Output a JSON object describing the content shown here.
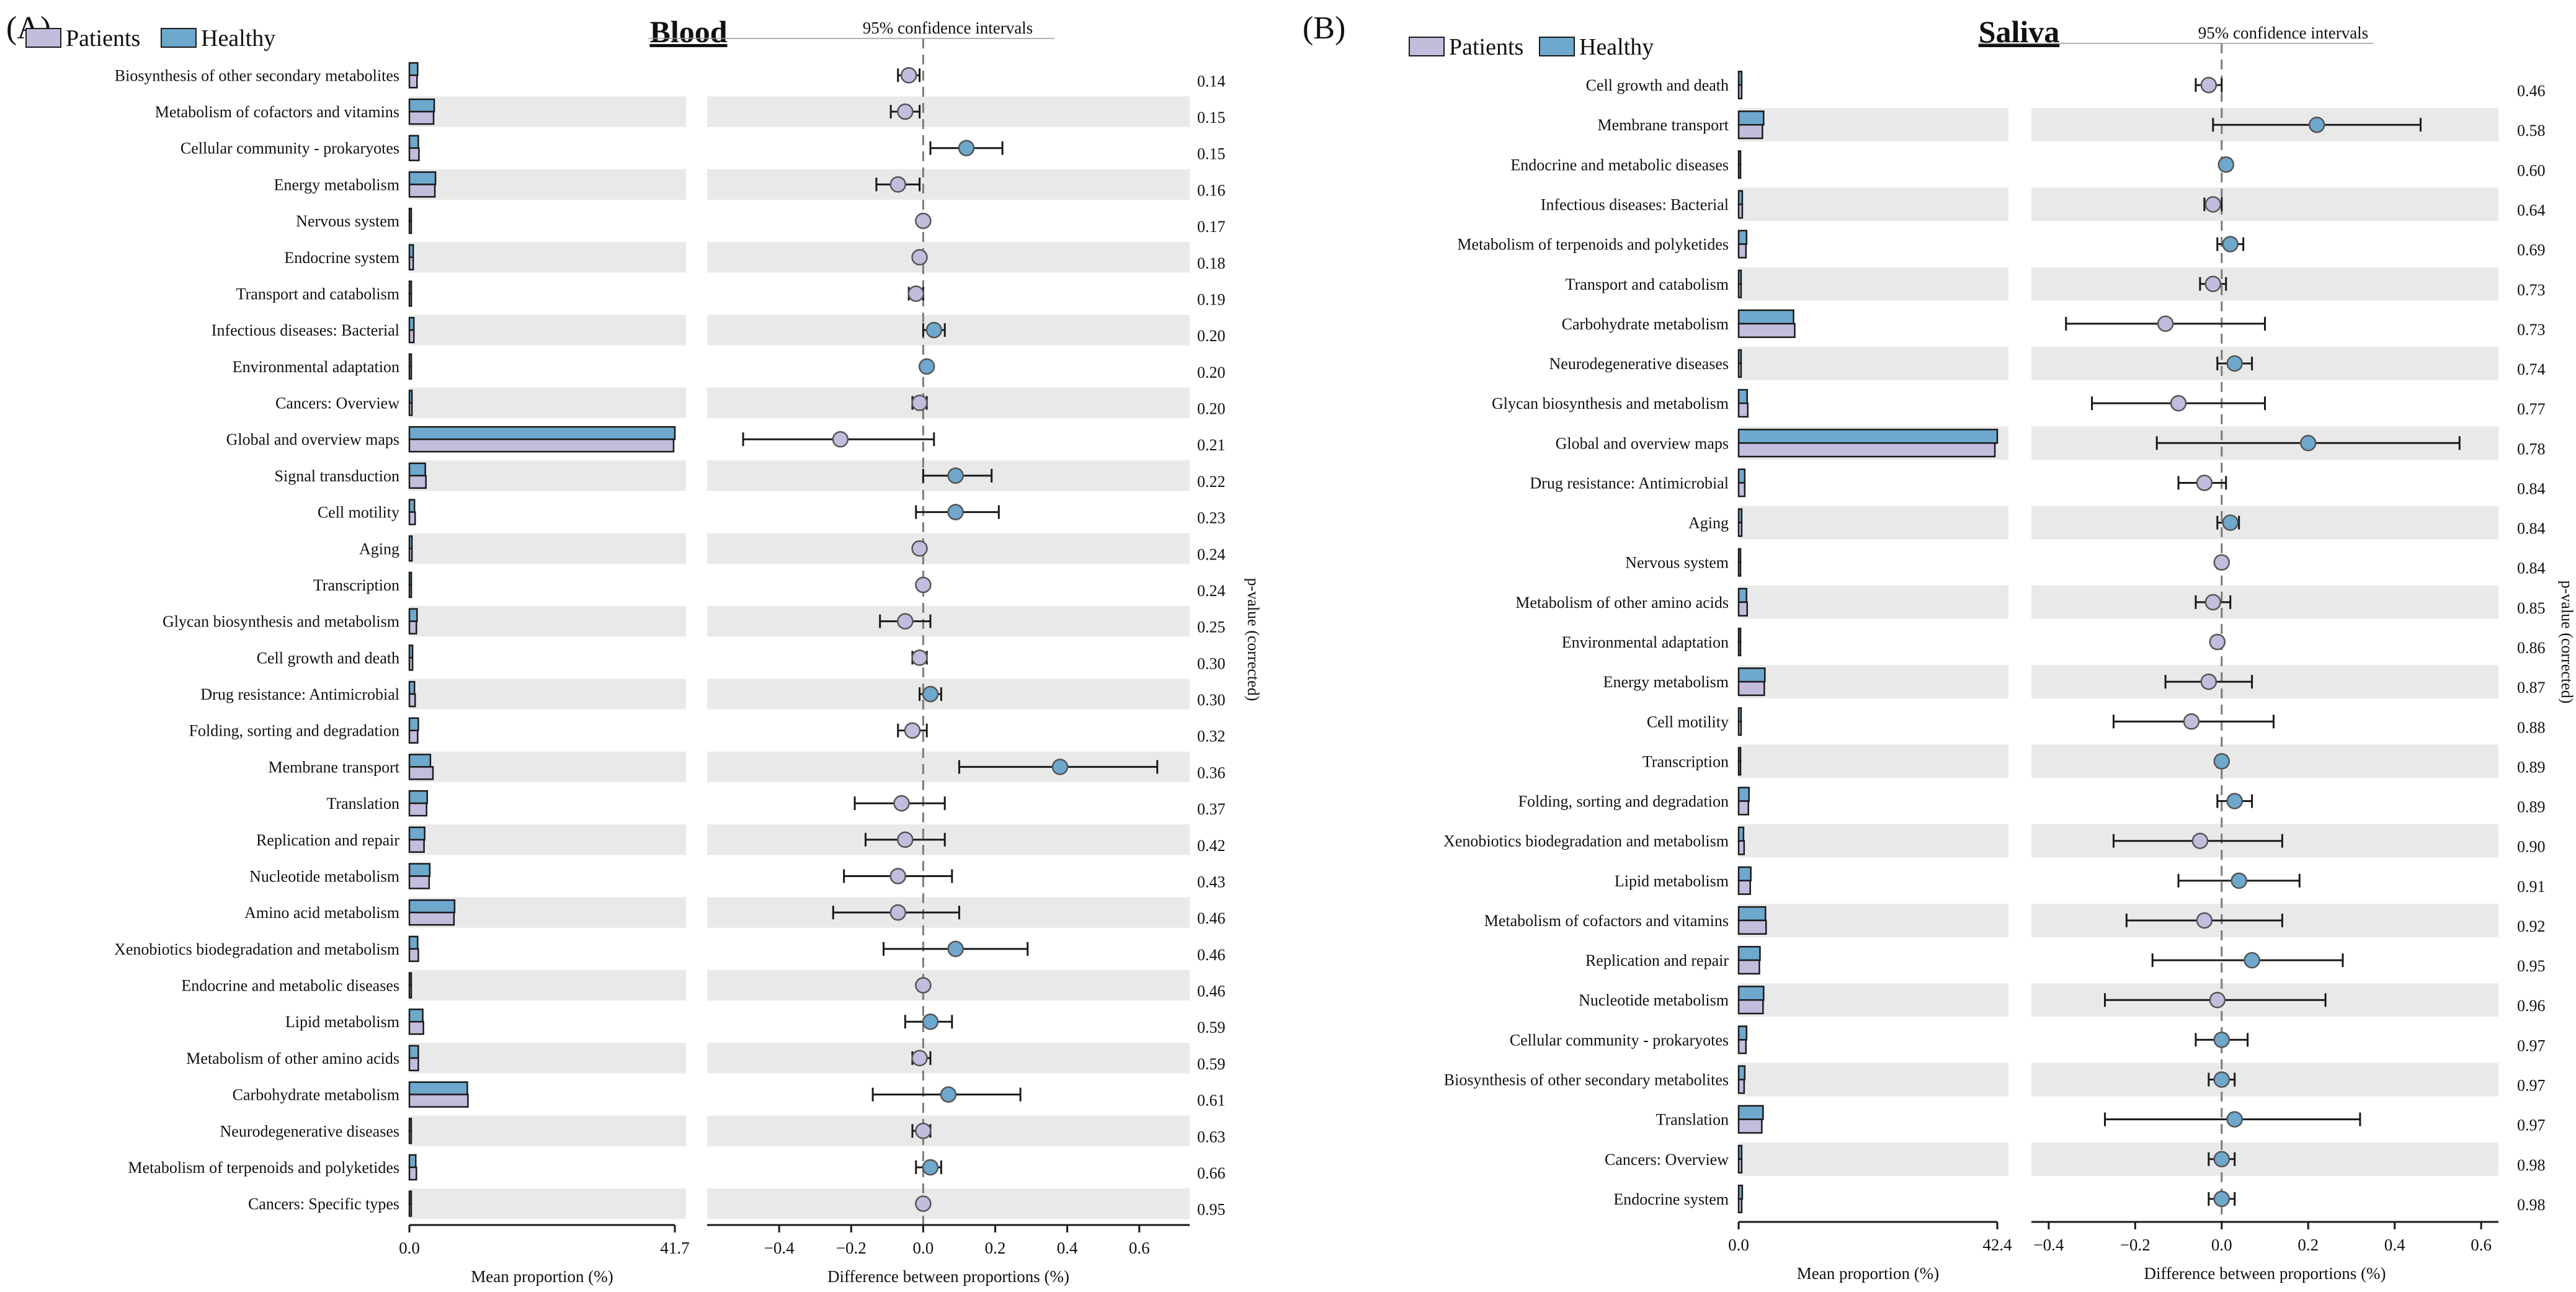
{
  "figure": {
    "legend": {
      "patients_label": "Patients",
      "healthy_label": "Healthy"
    },
    "colors": {
      "patients": "#c4bcdd",
      "healthy": "#6ea8cc",
      "band": "#e9e9e9",
      "zero_line": "#7a7a7a",
      "stroke": "#1a1a1a"
    }
  },
  "chart_data": [
    {
      "type": "bar",
      "panel_label": "(A)",
      "title": "Blood",
      "ci_label": "95% confidence intervals",
      "bar_xlabel": "Mean proportion (%)",
      "bar_xlim": [
        0,
        41.7
      ],
      "bar_ticks": [
        "0.0",
        "41.7"
      ],
      "diff_xlabel": "Difference between proportions (%)",
      "diff_xlim": [
        -0.6,
        0.74
      ],
      "diff_ticks": [
        -0.4,
        -0.2,
        0.0,
        0.2,
        0.4,
        0.6
      ],
      "diff_tick_labels": [
        "−0.4",
        "−0.2",
        "0.0",
        "0.2",
        "0.4",
        "0.6"
      ],
      "pvalue_label": "p-value (corrected)",
      "categories": [
        "Biosynthesis of other secondary metabolites",
        "Metabolism of cofactors and vitamins",
        "Cellular community - prokaryotes",
        "Energy metabolism",
        "Nervous system",
        "Endocrine system",
        "Transport and catabolism",
        "Infectious diseases: Bacterial",
        "Environmental adaptation",
        "Cancers: Overview",
        "Global and overview maps",
        "Signal transduction",
        "Cell motility",
        "Aging",
        "Transcription",
        "Glycan biosynthesis and metabolism",
        "Cell growth and death",
        "Drug resistance: Antimicrobial",
        "Folding, sorting and degradation",
        "Membrane transport",
        "Translation",
        "Replication and repair",
        "Nucleotide metabolism",
        "Amino acid metabolism",
        "Xenobiotics biodegradation and metabolism",
        "Endocrine and metabolic diseases",
        "Lipid metabolism",
        "Metabolism of other amino acids",
        "Carbohydrate metabolism",
        "Neurodegenerative diseases",
        "Metabolism of terpenoids and polyketides",
        "Cancers: Specific types"
      ],
      "series": [
        {
          "name": "Patients",
          "values": [
            1.2,
            3.8,
            1.5,
            4.0,
            0.2,
            0.6,
            0.3,
            0.7,
            0.3,
            0.4,
            41.5,
            2.6,
            0.9,
            0.4,
            0.3,
            1.1,
            0.5,
            0.9,
            1.3,
            3.7,
            2.7,
            2.3,
            3.1,
            7.0,
            1.4,
            0.2,
            2.2,
            1.4,
            9.2,
            0.2,
            1.1,
            0.1
          ]
        },
        {
          "name": "Healthy",
          "values": [
            1.3,
            3.9,
            1.4,
            4.1,
            0.2,
            0.6,
            0.3,
            0.7,
            0.3,
            0.4,
            41.7,
            2.5,
            0.8,
            0.4,
            0.3,
            1.2,
            0.5,
            0.8,
            1.4,
            3.3,
            2.8,
            2.4,
            3.2,
            7.1,
            1.3,
            0.2,
            2.1,
            1.4,
            9.1,
            0.2,
            1.0,
            0.1
          ]
        }
      ],
      "difference": [
        -0.04,
        -0.05,
        0.12,
        -0.07,
        0.0,
        -0.01,
        -0.02,
        0.03,
        0.01,
        -0.01,
        -0.23,
        0.09,
        0.09,
        -0.01,
        0.0,
        -0.05,
        -0.01,
        0.02,
        -0.03,
        0.38,
        -0.06,
        -0.05,
        -0.07,
        -0.07,
        0.09,
        0.0,
        0.02,
        -0.01,
        0.07,
        0.0,
        0.02,
        0.0
      ],
      "ci_low": [
        -0.07,
        -0.09,
        0.02,
        -0.13,
        -0.01,
        -0.02,
        -0.04,
        0.0,
        0.0,
        -0.03,
        -0.5,
        0.0,
        -0.02,
        -0.02,
        -0.01,
        -0.12,
        -0.03,
        -0.01,
        -0.07,
        0.1,
        -0.19,
        -0.16,
        -0.22,
        -0.25,
        -0.11,
        -0.01,
        -0.05,
        -0.03,
        -0.14,
        -0.03,
        -0.02,
        -0.01
      ],
      "ci_high": [
        -0.01,
        -0.01,
        0.22,
        -0.01,
        0.01,
        0.0,
        0.0,
        0.06,
        0.02,
        0.01,
        0.03,
        0.19,
        0.21,
        0.0,
        0.01,
        0.02,
        0.01,
        0.05,
        0.01,
        0.65,
        0.06,
        0.06,
        0.08,
        0.1,
        0.29,
        0.01,
        0.08,
        0.02,
        0.27,
        0.02,
        0.05,
        0.01
      ],
      "difference_group": [
        "Patients",
        "Patients",
        "Healthy",
        "Patients",
        "Patients",
        "Patients",
        "Patients",
        "Healthy",
        "Healthy",
        "Patients",
        "Patients",
        "Healthy",
        "Healthy",
        "Patients",
        "Patients",
        "Patients",
        "Patients",
        "Healthy",
        "Patients",
        "Healthy",
        "Patients",
        "Patients",
        "Patients",
        "Patients",
        "Healthy",
        "Patients",
        "Healthy",
        "Patients",
        "Healthy",
        "Patients",
        "Healthy",
        "Patients"
      ],
      "p_values": [
        "0.14",
        "0.15",
        "0.15",
        "0.16",
        "0.17",
        "0.18",
        "0.19",
        "0.20",
        "0.20",
        "0.20",
        "0.21",
        "0.22",
        "0.23",
        "0.24",
        "0.24",
        "0.25",
        "0.30",
        "0.30",
        "0.32",
        "0.36",
        "0.37",
        "0.42",
        "0.43",
        "0.46",
        "0.46",
        "0.46",
        "0.59",
        "0.59",
        "0.61",
        "0.63",
        "0.66",
        "0.95"
      ]
    },
    {
      "type": "bar",
      "panel_label": "(B)",
      "title": "Saliva",
      "ci_label": "95% confidence intervals",
      "bar_xlabel": "Mean proportion (%)",
      "bar_xlim": [
        0,
        42.4
      ],
      "bar_ticks": [
        "0.0",
        "42.4"
      ],
      "diff_xlabel": "Difference between proportions (%)",
      "diff_xlim": [
        -0.44,
        0.64
      ],
      "diff_ticks": [
        -0.4,
        -0.2,
        0.0,
        0.2,
        0.4,
        0.6
      ],
      "diff_tick_labels": [
        "−0.4",
        "−0.2",
        "0.0",
        "0.2",
        "0.4",
        "0.6"
      ],
      "pvalue_label": "p-value (corrected)",
      "categories": [
        "Cell growth and death",
        "Membrane transport",
        "Endocrine and metabolic diseases",
        "Infectious diseases: Bacterial",
        "Metabolism of terpenoids and polyketides",
        "Transport and catabolism",
        "Carbohydrate metabolism",
        "Neurodegenerative diseases",
        "Glycan biosynthesis and metabolism",
        "Global and overview maps",
        "Drug resistance: Antimicrobial",
        "Aging",
        "Nervous system",
        "Metabolism of other amino acids",
        "Environmental adaptation",
        "Energy metabolism",
        "Cell motility",
        "Transcription",
        "Folding, sorting and degradation",
        "Xenobiotics biodegradation and metabolism",
        "Lipid metabolism",
        "Metabolism of cofactors and vitamins",
        "Replication and repair",
        "Nucleotide metabolism",
        "Cellular community - prokaryotes",
        "Biosynthesis of other secondary metabolites",
        "Translation",
        "Cancers: Overview",
        "Endocrine system"
      ],
      "series": [
        {
          "name": "Patients",
          "values": [
            0.5,
            3.9,
            0.2,
            0.6,
            1.2,
            0.4,
            9.2,
            0.4,
            1.5,
            42.0,
            1.0,
            0.5,
            0.2,
            1.4,
            0.3,
            4.2,
            0.4,
            0.3,
            1.6,
            0.9,
            1.9,
            4.5,
            3.4,
            4.0,
            1.2,
            0.9,
            3.8,
            0.5,
            0.5
          ]
        },
        {
          "name": "Healthy",
          "values": [
            0.5,
            4.1,
            0.2,
            0.6,
            1.3,
            0.4,
            9.0,
            0.4,
            1.4,
            42.4,
            1.0,
            0.5,
            0.2,
            1.3,
            0.3,
            4.3,
            0.4,
            0.3,
            1.7,
            0.8,
            2.0,
            4.4,
            3.5,
            4.1,
            1.3,
            1.0,
            4.0,
            0.5,
            0.6
          ]
        }
      ],
      "difference": [
        -0.03,
        0.22,
        0.01,
        -0.02,
        0.02,
        -0.02,
        -0.13,
        0.03,
        -0.1,
        0.2,
        -0.04,
        0.02,
        0.0,
        -0.02,
        -0.01,
        -0.03,
        -0.07,
        0.0,
        0.03,
        -0.05,
        0.04,
        -0.04,
        0.07,
        -0.01,
        0.0,
        0.0,
        0.03,
        0.0,
        0.0
      ],
      "ci_low": [
        -0.06,
        -0.02,
        0.0,
        -0.04,
        -0.01,
        -0.05,
        -0.36,
        -0.01,
        -0.3,
        -0.15,
        -0.1,
        -0.01,
        -0.01,
        -0.06,
        -0.02,
        -0.13,
        -0.25,
        -0.01,
        -0.01,
        -0.25,
        -0.1,
        -0.22,
        -0.16,
        -0.27,
        -0.06,
        -0.03,
        -0.27,
        -0.03,
        -0.03
      ],
      "ci_high": [
        0.0,
        0.46,
        0.02,
        0.0,
        0.05,
        0.01,
        0.1,
        0.07,
        0.1,
        0.55,
        0.01,
        0.04,
        0.01,
        0.02,
        0.0,
        0.07,
        0.12,
        0.01,
        0.07,
        0.14,
        0.18,
        0.14,
        0.28,
        0.24,
        0.06,
        0.03,
        0.32,
        0.03,
        0.03
      ],
      "difference_group": [
        "Patients",
        "Healthy",
        "Healthy",
        "Patients",
        "Healthy",
        "Patients",
        "Patients",
        "Healthy",
        "Patients",
        "Healthy",
        "Patients",
        "Healthy",
        "Patients",
        "Patients",
        "Patients",
        "Patients",
        "Patients",
        "Healthy",
        "Healthy",
        "Patients",
        "Healthy",
        "Patients",
        "Healthy",
        "Patients",
        "Healthy",
        "Healthy",
        "Healthy",
        "Healthy",
        "Healthy"
      ],
      "p_values": [
        "0.46",
        "0.58",
        "0.60",
        "0.64",
        "0.69",
        "0.73",
        "0.73",
        "0.74",
        "0.77",
        "0.78",
        "0.84",
        "0.84",
        "0.84",
        "0.85",
        "0.86",
        "0.87",
        "0.88",
        "0.89",
        "0.89",
        "0.90",
        "0.91",
        "0.92",
        "0.95",
        "0.96",
        "0.97",
        "0.97",
        "0.97",
        "0.98",
        "0.98"
      ]
    }
  ]
}
